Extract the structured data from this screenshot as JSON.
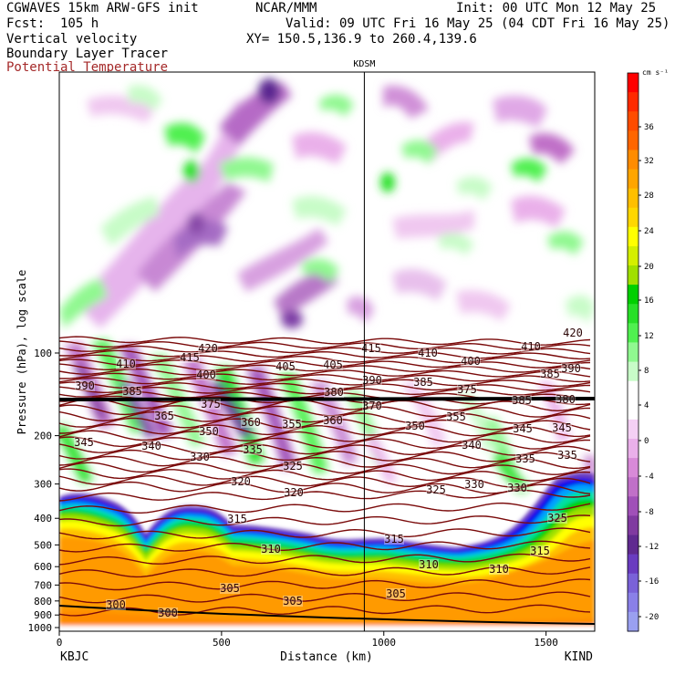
{
  "header": {
    "model": "CGWAVES 15km ARW-GFS init",
    "org": "NCAR/MMM",
    "init": "Init: 00 UTC Mon 12 May 25",
    "fcst": "Fcst:  105 h",
    "valid": "Valid: 09 UTC Fri 16 May 25 (04 CDT Fri 16 May 25)",
    "field1": "Vertical velocity",
    "field2": "Boundary Layer Tracer",
    "field3": "Potential Temperature",
    "xy": "XY= 150.5,136.9 to 260.4,139.6"
  },
  "colors": {
    "theta_line": "#7a0a0a",
    "theta_label": "#a52a2a",
    "divider": "#000000"
  },
  "chart_data": {
    "type": "cross-section",
    "station_marker": "KDSM",
    "station_marker_x_km": 940,
    "xlabel": "Distance (km)",
    "ylabel": "Pressure (hPa), log scale",
    "x_start_label": "KBJC",
    "x_end_label": "KIND",
    "xlim": [
      0,
      1650
    ],
    "x_ticks": [
      0,
      500,
      1000,
      1500
    ],
    "y_scale": "log",
    "y_ticks": [
      100,
      200,
      300,
      400,
      500,
      600,
      700,
      800,
      900,
      1000
    ],
    "colorbar": {
      "units": "cm s⁻¹",
      "tick_labels": [
        "36",
        "32",
        "28",
        "24",
        "20",
        "16",
        "12",
        "8",
        "4",
        "0",
        "-4",
        "-8",
        "-12",
        "-16",
        "-20"
      ],
      "colors": [
        "#ff0000",
        "#ff2a00",
        "#ff4c00",
        "#ff6600",
        "#ff8c00",
        "#ffa500",
        "#ffbf00",
        "#ffd700",
        "#ffff00",
        "#d4ef00",
        "#a0e000",
        "#00d000",
        "#28e028",
        "#50f050",
        "#90f890",
        "#c8fcc8",
        "#ffffff",
        "#ffffff",
        "#f4d0f4",
        "#eab0ea",
        "#d88ad8",
        "#c070c8",
        "#a050b8",
        "#803aa0",
        "#602a90",
        "#6a3cc0",
        "#7a62d8",
        "#8a80e8",
        "#9aa0f0"
      ]
    },
    "theta_labels": [
      {
        "value": "420",
        "x": 228,
        "y": 386
      },
      {
        "value": "415",
        "x": 208,
        "y": 396
      },
      {
        "value": "410",
        "x": 138,
        "y": 403
      },
      {
        "value": "400",
        "x": 226,
        "y": 415
      },
      {
        "value": "405",
        "x": 313,
        "y": 406
      },
      {
        "value": "405",
        "x": 365,
        "y": 404
      },
      {
        "value": "415",
        "x": 407,
        "y": 386
      },
      {
        "value": "410",
        "x": 469,
        "y": 391
      },
      {
        "value": "400",
        "x": 516,
        "y": 400
      },
      {
        "value": "410",
        "x": 582,
        "y": 384
      },
      {
        "value": "420",
        "x": 628,
        "y": 369
      },
      {
        "value": "385",
        "x": 603,
        "y": 414
      },
      {
        "value": "390",
        "x": 626,
        "y": 408
      },
      {
        "value": "390",
        "x": 93,
        "y": 427
      },
      {
        "value": "385",
        "x": 145,
        "y": 433
      },
      {
        "value": "390",
        "x": 408,
        "y": 421
      },
      {
        "value": "385",
        "x": 464,
        "y": 423
      },
      {
        "value": "380",
        "x": 366,
        "y": 434
      },
      {
        "value": "375",
        "x": 512,
        "y": 431
      },
      {
        "value": "375",
        "x": 231,
        "y": 447
      },
      {
        "value": "385",
        "x": 572,
        "y": 443
      },
      {
        "value": "380",
        "x": 620,
        "y": 442
      },
      {
        "value": "370",
        "x": 408,
        "y": 449
      },
      {
        "value": "365",
        "x": 180,
        "y": 460
      },
      {
        "value": "360",
        "x": 275,
        "y": 467
      },
      {
        "value": "355",
        "x": 320,
        "y": 469
      },
      {
        "value": "360",
        "x": 365,
        "y": 465
      },
      {
        "value": "350",
        "x": 455,
        "y": 471
      },
      {
        "value": "355",
        "x": 500,
        "y": 461
      },
      {
        "value": "345",
        "x": 573,
        "y": 474
      },
      {
        "value": "345",
        "x": 616,
        "y": 473
      },
      {
        "value": "350",
        "x": 229,
        "y": 477
      },
      {
        "value": "345",
        "x": 92,
        "y": 489
      },
      {
        "value": "340",
        "x": 166,
        "y": 493
      },
      {
        "value": "335",
        "x": 277,
        "y": 497
      },
      {
        "value": "340",
        "x": 517,
        "y": 492
      },
      {
        "value": "335",
        "x": 576,
        "y": 507
      },
      {
        "value": "335",
        "x": 622,
        "y": 503
      },
      {
        "value": "330",
        "x": 219,
        "y": 505
      },
      {
        "value": "325",
        "x": 321,
        "y": 515
      },
      {
        "value": "330",
        "x": 520,
        "y": 535
      },
      {
        "value": "320",
        "x": 264,
        "y": 532
      },
      {
        "value": "320",
        "x": 322,
        "y": 544
      },
      {
        "value": "325",
        "x": 478,
        "y": 541
      },
      {
        "value": "330",
        "x": 567,
        "y": 539
      },
      {
        "value": "315",
        "x": 260,
        "y": 573
      },
      {
        "value": "325",
        "x": 611,
        "y": 572
      },
      {
        "value": "315",
        "x": 432,
        "y": 595
      },
      {
        "value": "310",
        "x": 297,
        "y": 606
      },
      {
        "value": "315",
        "x": 592,
        "y": 608
      },
      {
        "value": "310",
        "x": 470,
        "y": 623
      },
      {
        "value": "310",
        "x": 547,
        "y": 628
      },
      {
        "value": "305",
        "x": 252,
        "y": 649
      },
      {
        "value": "305",
        "x": 321,
        "y": 663
      },
      {
        "value": "305",
        "x": 434,
        "y": 655
      },
      {
        "value": "300",
        "x": 127,
        "y": 667
      },
      {
        "value": "300",
        "x": 184,
        "y": 676
      }
    ]
  }
}
